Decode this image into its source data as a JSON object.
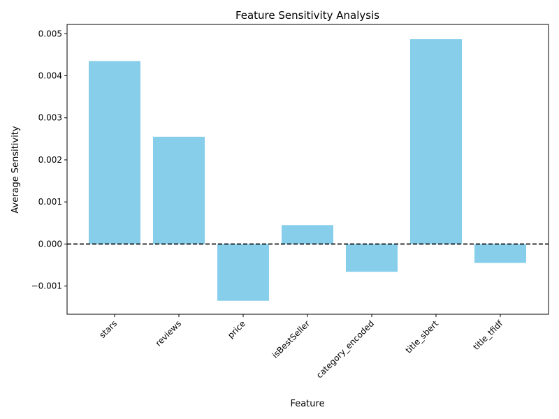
{
  "chart_data": {
    "type": "bar",
    "title": "Feature Sensitivity Analysis",
    "xlabel": "Feature",
    "ylabel": "Average Sensitivity",
    "categories": [
      "stars",
      "reviews",
      "price",
      "isBestSeller",
      "category_encoded",
      "title_sbert",
      "title_tfidf"
    ],
    "values": [
      0.00435,
      0.00255,
      -0.00135,
      0.00045,
      -0.00066,
      0.00487,
      -0.00045
    ],
    "ylim": [
      -0.00167,
      0.00522
    ],
    "yticks": [
      -0.001,
      0.0,
      0.001,
      0.002,
      0.003,
      0.004,
      0.005
    ],
    "ytick_labels": [
      "−0.001",
      "0.000",
      "0.001",
      "0.002",
      "0.003",
      "0.004",
      "0.005"
    ],
    "bar_color": "#87ceeb",
    "reference_line": {
      "y": 0,
      "style": "dashed",
      "color": "#000000"
    },
    "grid": false,
    "x_tick_rotation_deg": 45
  }
}
